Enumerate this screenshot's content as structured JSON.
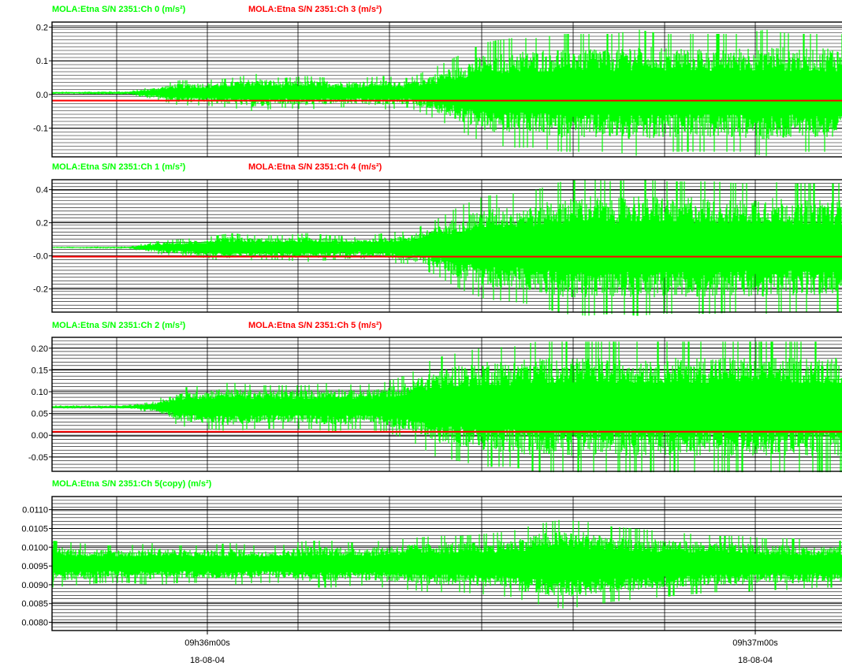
{
  "colors": {
    "green": "#00ff00",
    "red": "#ff0000",
    "grid": "#000000"
  },
  "chart_data": [
    {
      "type": "line",
      "legend": [
        "MOLA:Etna S/N 2351:Ch 0 (m/s²)",
        "MOLA:Etna S/N 2351:Ch 3 (m/s²)"
      ],
      "ylim": [
        -0.185,
        0.215
      ],
      "yticks": [
        {
          "value": 0.2,
          "label": "0.2"
        },
        {
          "value": 0.1,
          "label": "0.1"
        },
        {
          "value": 0.0,
          "label": "0.0"
        },
        {
          "value": -0.1,
          "label": "-0.1"
        }
      ],
      "series": [
        {
          "name": "MOLA:Etna S/N 2351:Ch 0 (m/s²)",
          "color": "#00ff00",
          "baseline": 0.005,
          "envelope_max": [
            0.003,
            0.003,
            0.004,
            0.004,
            0.015,
            0.03,
            0.03,
            0.035,
            0.045,
            0.035,
            0.04,
            0.035,
            0.035,
            0.04,
            0.035,
            0.06,
            0.09,
            0.12,
            0.13,
            0.13,
            0.14,
            0.14,
            0.14,
            0.15,
            0.14,
            0.14,
            0.14,
            0.14,
            0.15,
            0.14,
            0.14,
            0.14
          ]
        },
        {
          "name": "MOLA:Etna S/N 2351:Ch 3 (m/s²)",
          "color": "#ff0000",
          "constant": -0.018
        }
      ]
    },
    {
      "type": "line",
      "legend": [
        "MOLA:Etna S/N 2351:Ch 1 (m/s²)",
        "MOLA:Etna S/N 2351:Ch 4 (m/s²)"
      ],
      "ylim": [
        -0.34,
        0.46
      ],
      "yticks": [
        {
          "value": 0.4,
          "label": "0.4"
        },
        {
          "value": 0.2,
          "label": "0.2"
        },
        {
          "value": 0.0,
          "label": "-0.0"
        },
        {
          "value": -0.2,
          "label": "-0.2"
        }
      ],
      "series": [
        {
          "name": "MOLA:Etna S/N 2351:Ch 1 (m/s²)",
          "color": "#00ff00",
          "baseline": 0.05,
          "envelope_max": [
            0.004,
            0.004,
            0.005,
            0.005,
            0.03,
            0.04,
            0.05,
            0.07,
            0.06,
            0.06,
            0.07,
            0.06,
            0.05,
            0.07,
            0.08,
            0.13,
            0.2,
            0.25,
            0.26,
            0.28,
            0.32,
            0.33,
            0.32,
            0.33,
            0.32,
            0.32,
            0.32,
            0.31,
            0.32,
            0.31,
            0.31,
            0.31
          ]
        },
        {
          "name": "MOLA:Etna S/N 2351:Ch 4 (m/s²)",
          "color": "#ff0000",
          "constant": -0.005
        }
      ]
    },
    {
      "type": "line",
      "legend": [
        "MOLA:Etna S/N 2351:Ch 2 (m/s²)",
        "MOLA:Etna S/N 2351:Ch 5 (m/s²)"
      ],
      "ylim": [
        -0.083,
        0.225
      ],
      "yticks": [
        {
          "value": 0.2,
          "label": "0.20"
        },
        {
          "value": 0.15,
          "label": "0.15"
        },
        {
          "value": 0.1,
          "label": "0.10"
        },
        {
          "value": 0.05,
          "label": "0.05"
        },
        {
          "value": 0.0,
          "label": "0.00"
        },
        {
          "value": -0.05,
          "label": "-0.05"
        }
      ],
      "series": [
        {
          "name": "MOLA:Etna S/N 2351:Ch 2 (m/s²)",
          "color": "#00ff00",
          "baseline": 0.065,
          "envelope_max": [
            0.003,
            0.003,
            0.003,
            0.004,
            0.01,
            0.035,
            0.04,
            0.045,
            0.04,
            0.04,
            0.04,
            0.045,
            0.04,
            0.045,
            0.06,
            0.09,
            0.1,
            0.11,
            0.11,
            0.12,
            0.12,
            0.12,
            0.12,
            0.12,
            0.12,
            0.12,
            0.12,
            0.12,
            0.12,
            0.12,
            0.12,
            0.12
          ]
        },
        {
          "name": "MOLA:Etna S/N 2351:Ch 5 (m/s²)",
          "color": "#ff0000",
          "constant": 0.008
        }
      ]
    },
    {
      "type": "line",
      "legend": [
        "MOLA:Etna S/N 2351:Ch 5(copy) (m/s²)"
      ],
      "ylim": [
        0.00778,
        0.01135
      ],
      "yticks": [
        {
          "value": 0.011,
          "label": "0.0110"
        },
        {
          "value": 0.0105,
          "label": "0.0105"
        },
        {
          "value": 0.01,
          "label": "0.0100"
        },
        {
          "value": 0.0095,
          "label": "0.0095"
        },
        {
          "value": 0.009,
          "label": "0.0090"
        },
        {
          "value": 0.0085,
          "label": "0.0085"
        },
        {
          "value": 0.008,
          "label": "0.0080"
        }
      ],
      "series": [
        {
          "name": "MOLA:Etna S/N 2351:Ch 5(copy) (m/s²)",
          "color": "#00ff00",
          "baseline": 0.00955,
          "envelope_max": [
            0.0005,
            0.00045,
            0.0004,
            0.0004,
            0.00045,
            0.0004,
            0.0004,
            0.00045,
            0.0004,
            0.0004,
            0.0005,
            0.0005,
            0.00045,
            0.0005,
            0.00055,
            0.0006,
            0.0006,
            0.00065,
            0.0007,
            0.00085,
            0.00095,
            0.0009,
            0.0008,
            0.00075,
            0.0007,
            0.00065,
            0.0006,
            0.0006,
            0.00055,
            0.00055,
            0.0005,
            0.0005
          ]
        }
      ]
    }
  ],
  "x_axis": {
    "ticks": [
      {
        "time": "09h36m00s",
        "date": "18-08-04"
      },
      {
        "time": "09h37m00s",
        "date": "18-08-04"
      }
    ]
  }
}
